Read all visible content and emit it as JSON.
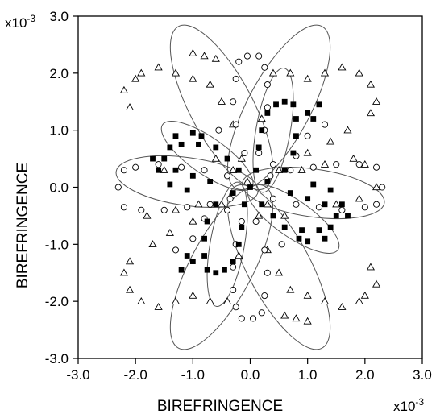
{
  "chart_data": {
    "type": "scatter",
    "xlabel": "BIREFRINGENCE",
    "ylabel": "BIREFRINGENCE",
    "x_multiplier": {
      "base": "x10",
      "exp": "-3"
    },
    "y_multiplier": {
      "base": "x10",
      "exp": "-3"
    },
    "xlim": [
      -3.0,
      3.0
    ],
    "ylim": [
      -3.0,
      3.0
    ],
    "x_ticks": [
      -3.0,
      -2.0,
      -1.0,
      0.0,
      1.0,
      2.0,
      3.0
    ],
    "y_ticks": [
      -3.0,
      -2.0,
      -1.0,
      0.0,
      1.0,
      2.0,
      3.0
    ],
    "x_tick_labels": [
      "-3.0",
      "-2.0",
      "-1.0",
      "0.0",
      "1.0",
      "2.0",
      "3.0"
    ],
    "y_tick_labels": [
      "-3.0",
      "-2.0",
      "-1.0",
      "0.0",
      "1.0",
      "2.0",
      "3.0"
    ],
    "grid": false,
    "colors": {
      "axis": "#000000",
      "curve": "#555555",
      "marker": "#000000"
    },
    "fitted_ellipses": [
      {
        "cx": 0.5,
        "cy": 1.4,
        "a": 1.6,
        "b": 0.55,
        "angle_deg": 62
      },
      {
        "cx": -0.5,
        "cy": -1.4,
        "a": 1.6,
        "b": 0.55,
        "angle_deg": 62
      },
      {
        "cx": -0.5,
        "cy": 1.4,
        "a": 1.6,
        "b": 0.55,
        "angle_deg": 118
      },
      {
        "cx": 0.5,
        "cy": -1.4,
        "a": 1.6,
        "b": 0.55,
        "angle_deg": 118
      },
      {
        "cx": 1.1,
        "cy": -0.1,
        "a": 1.25,
        "b": 0.42,
        "angle_deg": -8
      },
      {
        "cx": -1.1,
        "cy": 0.1,
        "a": 1.25,
        "b": 0.42,
        "angle_deg": -8
      },
      {
        "cx": 0.4,
        "cy": 1.0,
        "a": 1.1,
        "b": 0.3,
        "angle_deg": 80
      },
      {
        "cx": -0.4,
        "cy": -1.0,
        "a": 1.1,
        "b": 0.3,
        "angle_deg": 80
      },
      {
        "cx": 0.75,
        "cy": -0.55,
        "a": 0.95,
        "b": 0.32,
        "angle_deg": -35
      },
      {
        "cx": -0.75,
        "cy": 0.55,
        "a": 0.95,
        "b": 0.32,
        "angle_deg": -35
      }
    ],
    "series": [
      {
        "marker": "triangle-open",
        "points": [
          [
            -2.2,
            1.7
          ],
          [
            -2.1,
            1.4
          ],
          [
            -2.0,
            1.9
          ],
          [
            -1.9,
            2.0
          ],
          [
            -1.6,
            2.1
          ],
          [
            -1.3,
            2.0
          ],
          [
            -1.0,
            1.9
          ],
          [
            -0.7,
            1.8
          ],
          [
            -0.5,
            1.5
          ],
          [
            -0.3,
            1.1
          ],
          [
            -0.15,
            0.5
          ],
          [
            -0.05,
            0.1
          ],
          [
            -0.6,
            0.5
          ],
          [
            -0.3,
            0.3
          ],
          [
            0.4,
            2.0
          ],
          [
            0.7,
            2.0
          ],
          [
            1.0,
            1.9
          ],
          [
            1.3,
            2.0
          ],
          [
            1.6,
            2.1
          ],
          [
            1.9,
            2.0
          ],
          [
            2.1,
            1.8
          ],
          [
            2.2,
            1.5
          ],
          [
            2.1,
            1.3
          ],
          [
            1.7,
            1.0
          ],
          [
            1.4,
            0.8
          ],
          [
            1.0,
            0.6
          ],
          [
            0.5,
            0.3
          ],
          [
            0.9,
            0.3
          ],
          [
            1.3,
            0.4
          ],
          [
            1.8,
            0.5
          ],
          [
            2.0,
            0.4
          ],
          [
            2.2,
            0.0
          ],
          [
            1.9,
            -0.2
          ],
          [
            1.5,
            -0.3
          ],
          [
            2.2,
            -1.7
          ],
          [
            2.1,
            -1.4
          ],
          [
            2.0,
            -1.9
          ],
          [
            1.9,
            -2.0
          ],
          [
            1.6,
            -2.1
          ],
          [
            1.3,
            -2.0
          ],
          [
            1.0,
            -1.9
          ],
          [
            0.7,
            -1.8
          ],
          [
            0.5,
            -1.5
          ],
          [
            0.3,
            -1.1
          ],
          [
            0.15,
            -0.5
          ],
          [
            0.6,
            -0.5
          ],
          [
            0.3,
            -0.3
          ],
          [
            -0.4,
            -2.0
          ],
          [
            -0.7,
            -2.0
          ],
          [
            -1.0,
            -1.9
          ],
          [
            -1.3,
            -2.0
          ],
          [
            -1.6,
            -2.1
          ],
          [
            -1.9,
            -2.0
          ],
          [
            -2.1,
            -1.8
          ],
          [
            -2.2,
            -1.5
          ],
          [
            -2.1,
            -1.3
          ],
          [
            -1.7,
            -1.0
          ],
          [
            -1.4,
            -0.8
          ],
          [
            -1.0,
            -0.6
          ],
          [
            -0.5,
            -0.3
          ],
          [
            -0.9,
            -0.3
          ],
          [
            -1.3,
            -0.4
          ],
          [
            -1.8,
            -0.5
          ],
          [
            -1.5,
            0.3
          ],
          [
            0.6,
            -2.25
          ],
          [
            0.8,
            -2.3
          ],
          [
            1.0,
            -2.35
          ],
          [
            -0.6,
            2.25
          ],
          [
            -0.8,
            2.3
          ],
          [
            -1.0,
            2.35
          ],
          [
            0.2,
            1.2
          ],
          [
            -0.2,
            -1.2
          ]
        ]
      },
      {
        "marker": "circle-open",
        "points": [
          [
            -0.2,
            2.2
          ],
          [
            -0.05,
            2.3
          ],
          [
            0.15,
            2.3
          ],
          [
            0.25,
            2.1
          ],
          [
            0.3,
            1.8
          ],
          [
            0.3,
            1.4
          ],
          [
            0.25,
            1.0
          ],
          [
            0.15,
            0.6
          ],
          [
            -0.25,
            1.9
          ],
          [
            -0.3,
            1.5
          ],
          [
            -0.25,
            1.1
          ],
          [
            -0.1,
            0.6
          ],
          [
            0.2,
            -2.2
          ],
          [
            0.05,
            -2.3
          ],
          [
            -0.15,
            -2.3
          ],
          [
            -0.25,
            -2.1
          ],
          [
            -0.3,
            -1.8
          ],
          [
            -0.3,
            -1.4
          ],
          [
            -0.25,
            -1.0
          ],
          [
            -0.15,
            -0.6
          ],
          [
            0.25,
            -1.9
          ],
          [
            0.3,
            -1.5
          ],
          [
            0.25,
            -1.1
          ],
          [
            0.1,
            -0.6
          ],
          [
            -2.3,
            0.0
          ],
          [
            -2.2,
            0.3
          ],
          [
            -2.0,
            0.35
          ],
          [
            -1.6,
            0.4
          ],
          [
            -1.2,
            0.35
          ],
          [
            -0.8,
            0.3
          ],
          [
            -0.4,
            0.2
          ],
          [
            -2.2,
            -0.35
          ],
          [
            -1.9,
            -0.4
          ],
          [
            -1.5,
            -0.4
          ],
          [
            -1.1,
            -0.35
          ],
          [
            -0.7,
            -0.3
          ],
          [
            -0.35,
            -0.2
          ],
          [
            2.3,
            0.0
          ],
          [
            2.2,
            -0.3
          ],
          [
            2.0,
            -0.35
          ],
          [
            1.6,
            -0.4
          ],
          [
            1.2,
            -0.35
          ],
          [
            0.8,
            -0.3
          ],
          [
            0.4,
            -0.2
          ],
          [
            2.2,
            0.35
          ],
          [
            1.9,
            0.4
          ],
          [
            1.5,
            0.4
          ],
          [
            1.1,
            0.35
          ],
          [
            0.7,
            0.3
          ],
          [
            0.35,
            0.2
          ],
          [
            1.0,
            0.9
          ],
          [
            1.3,
            1.1
          ],
          [
            0.8,
            0.55
          ],
          [
            -1.0,
            -0.9
          ],
          [
            -1.3,
            -1.1
          ],
          [
            -0.8,
            -0.55
          ],
          [
            0.4,
            0.4
          ],
          [
            -0.4,
            -0.4
          ],
          [
            0.55,
            -1.0
          ],
          [
            -0.55,
            1.0
          ]
        ]
      },
      {
        "marker": "square-filled",
        "points": [
          [
            0.0,
            0.0
          ],
          [
            0.1,
            0.3
          ],
          [
            0.15,
            0.7
          ],
          [
            0.2,
            1.0
          ],
          [
            0.3,
            1.3
          ],
          [
            0.45,
            1.45
          ],
          [
            0.6,
            1.5
          ],
          [
            0.75,
            1.45
          ],
          [
            0.8,
            1.2
          ],
          [
            0.8,
            0.9
          ],
          [
            0.75,
            0.6
          ],
          [
            0.6,
            0.3
          ],
          [
            0.3,
            0.1
          ],
          [
            -0.1,
            -0.3
          ],
          [
            -0.15,
            -0.7
          ],
          [
            -0.2,
            -1.0
          ],
          [
            -0.3,
            -1.3
          ],
          [
            -0.45,
            -1.45
          ],
          [
            -0.6,
            -1.5
          ],
          [
            -0.75,
            -1.45
          ],
          [
            -0.8,
            -1.2
          ],
          [
            -0.8,
            -0.9
          ],
          [
            -0.75,
            -0.6
          ],
          [
            -0.6,
            -0.3
          ],
          [
            -0.3,
            -0.1
          ],
          [
            -1.5,
            0.5
          ],
          [
            -1.4,
            0.7
          ],
          [
            -1.2,
            0.75
          ],
          [
            -0.9,
            0.75
          ],
          [
            -0.6,
            0.7
          ],
          [
            -0.4,
            0.5
          ],
          [
            -0.2,
            0.3
          ],
          [
            -1.3,
            0.3
          ],
          [
            -1.0,
            0.2
          ],
          [
            -0.7,
            0.1
          ],
          [
            1.5,
            -0.5
          ],
          [
            1.4,
            -0.7
          ],
          [
            1.2,
            -0.75
          ],
          [
            0.9,
            -0.75
          ],
          [
            0.6,
            -0.7
          ],
          [
            0.4,
            -0.5
          ],
          [
            0.2,
            -0.3
          ],
          [
            1.3,
            -0.3
          ],
          [
            1.0,
            -0.2
          ],
          [
            0.7,
            -0.1
          ],
          [
            1.7,
            -0.5
          ],
          [
            1.6,
            -0.3
          ],
          [
            1.4,
            -0.05
          ],
          [
            1.1,
            0.05
          ],
          [
            1.3,
            -0.9
          ],
          [
            1.0,
            -0.95
          ],
          [
            0.85,
            -0.9
          ],
          [
            -1.7,
            0.5
          ],
          [
            -1.6,
            0.3
          ],
          [
            -1.4,
            0.05
          ],
          [
            -1.1,
            -0.05
          ],
          [
            -1.3,
            0.9
          ],
          [
            -1.0,
            0.95
          ],
          [
            -0.85,
            0.9
          ],
          [
            -1.1,
            -1.2
          ],
          [
            -1.2,
            -1.45
          ],
          [
            -1.0,
            -1.3
          ],
          [
            1.1,
            1.2
          ],
          [
            1.2,
            1.45
          ],
          [
            1.0,
            1.3
          ]
        ]
      }
    ]
  }
}
